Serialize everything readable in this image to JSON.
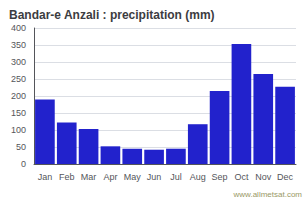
{
  "chart_data": {
    "type": "bar",
    "title": "Bandar-e Anzali : precipitation (mm)",
    "categories": [
      "Jan",
      "Feb",
      "Mar",
      "Apr",
      "May",
      "Jun",
      "Jul",
      "Aug",
      "Sep",
      "Oct",
      "Nov",
      "Dec"
    ],
    "values": [
      190,
      122,
      103,
      52,
      45,
      42,
      45,
      117,
      215,
      353,
      265,
      227
    ],
    "color": "#2222cc",
    "ylim": [
      0,
      400
    ],
    "yticks": [
      0,
      50,
      100,
      150,
      200,
      250,
      300,
      350,
      400
    ],
    "grid": true,
    "annotation": "www.allmetsat.com"
  }
}
